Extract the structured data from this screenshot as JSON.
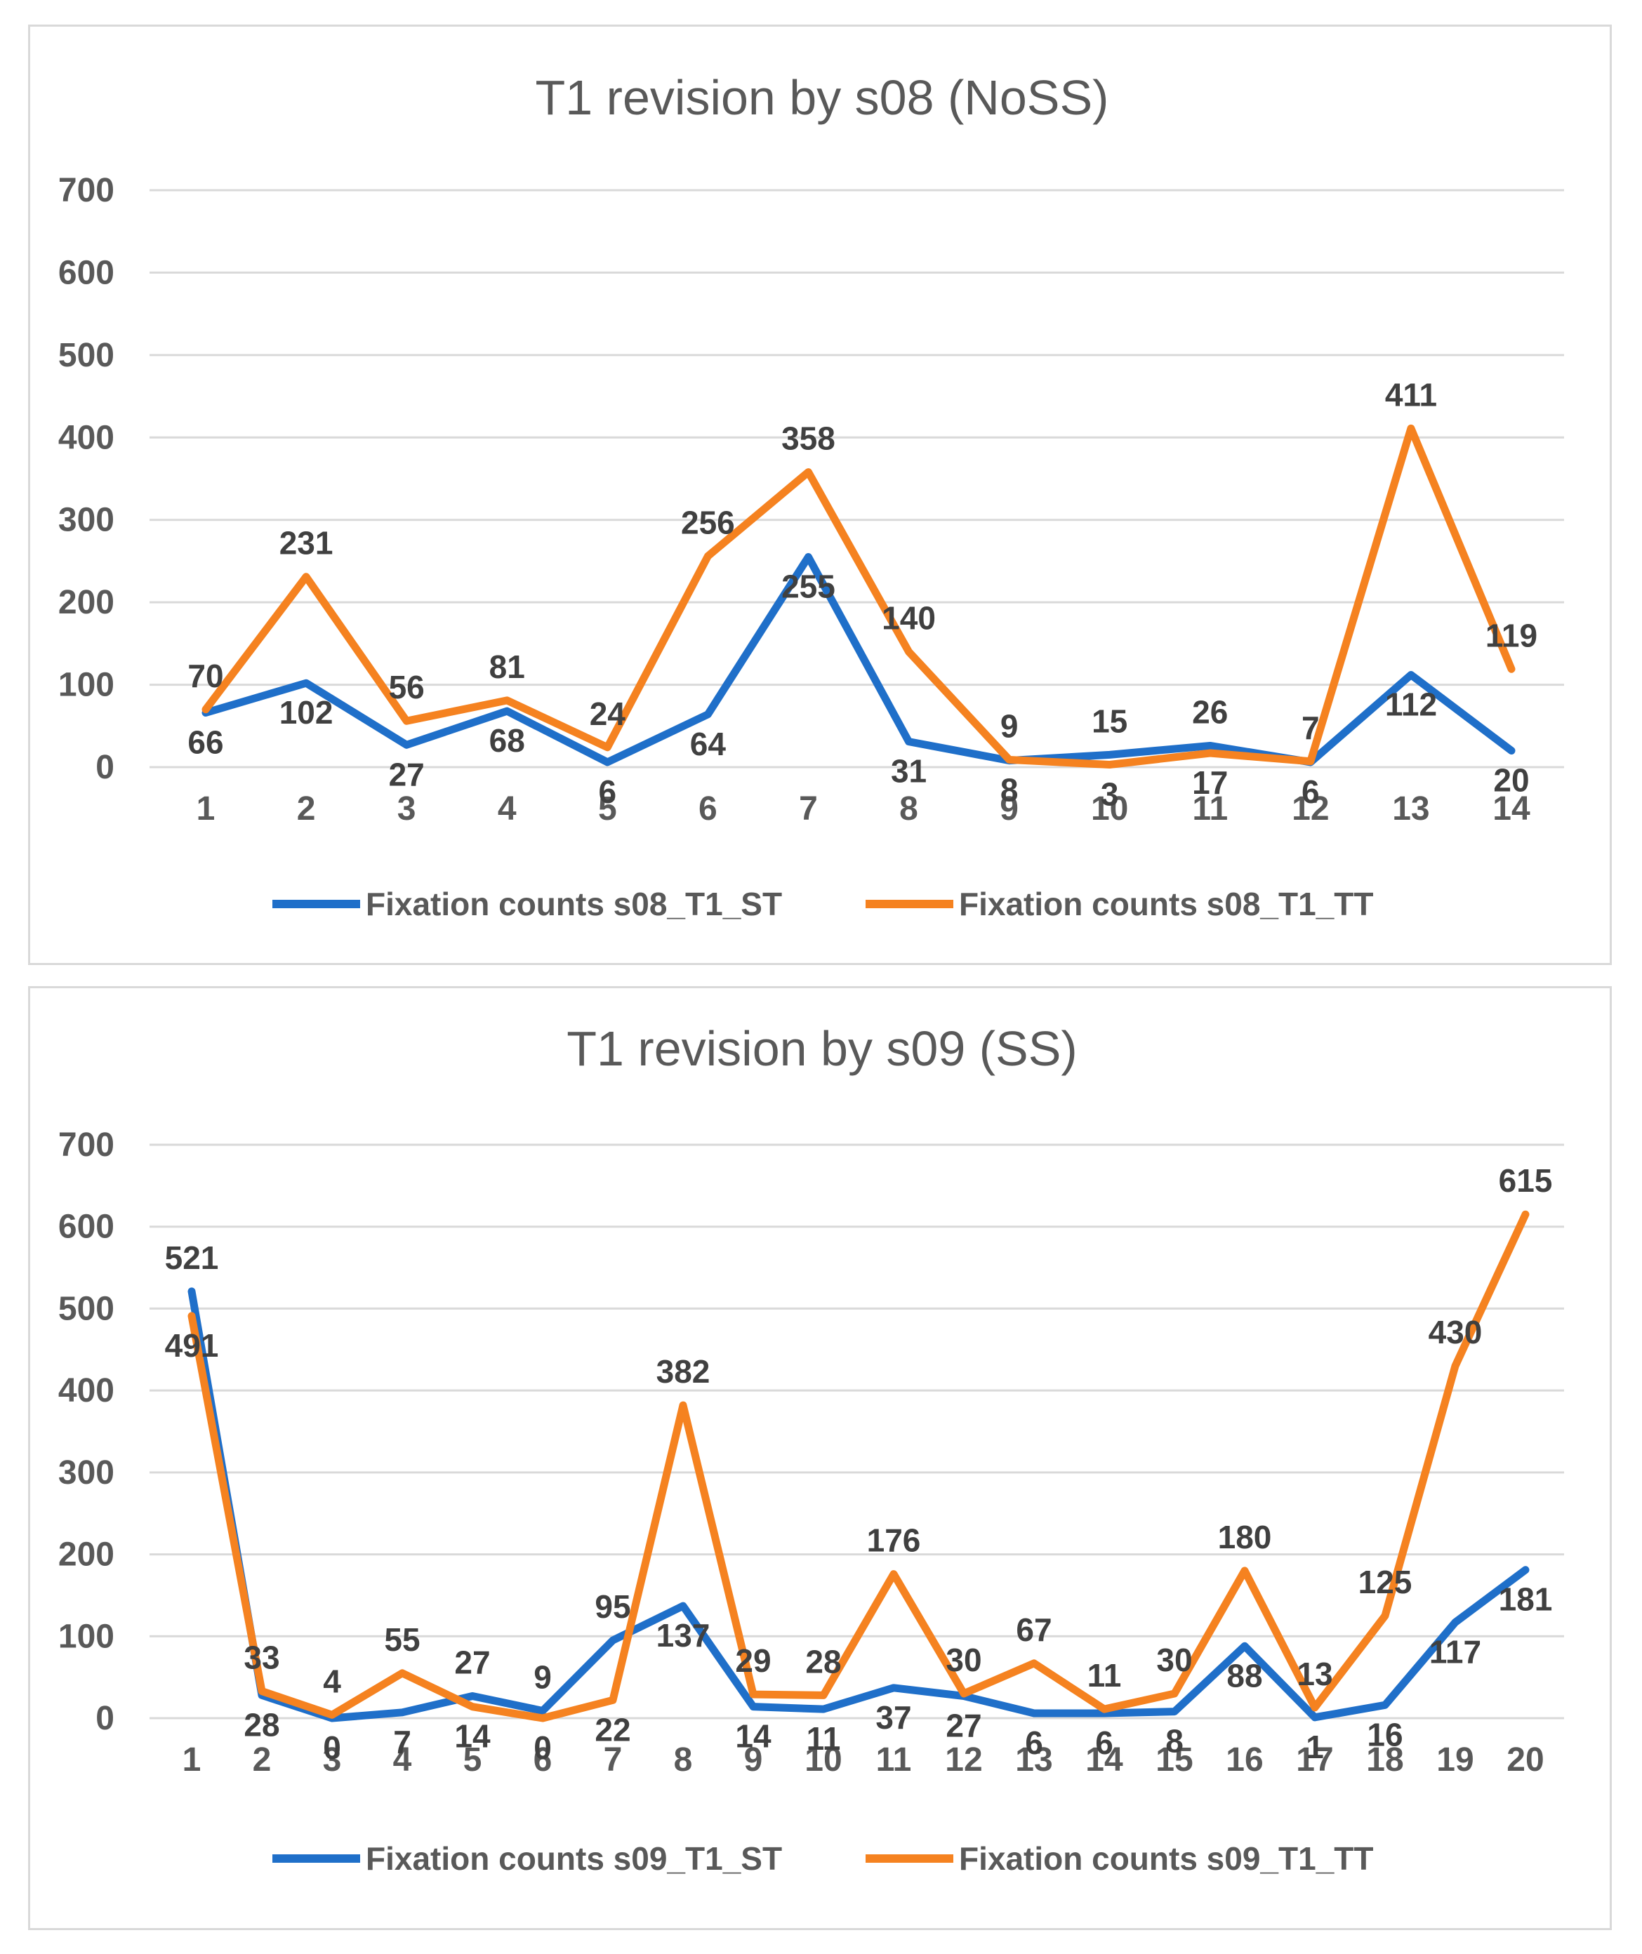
{
  "charts": [
    {
      "type": "line",
      "title": "T1 revision by s08 (NoSS)",
      "categories": [
        "1",
        "2",
        "3",
        "4",
        "5",
        "6",
        "7",
        "8",
        "9",
        "10",
        "11",
        "12",
        "13",
        "14"
      ],
      "y_ticks": [
        "0",
        "100",
        "200",
        "300",
        "400",
        "500",
        "600",
        "700"
      ],
      "ylim": [
        0,
        700
      ],
      "series": [
        {
          "name": "Fixation counts s08_T1_ST",
          "color": "#1f6fc9",
          "values": [
            66,
            102,
            27,
            68,
            6,
            64,
            255,
            31,
            8,
            15,
            26,
            6,
            112,
            20
          ],
          "labels": [
            "66",
            "102",
            "27",
            "68",
            "6",
            "64",
            "255",
            "31",
            "8",
            "15",
            "26",
            "6",
            "112",
            "20"
          ]
        },
        {
          "name": "Fixation counts s08_T1_TT",
          "color": "#f58220",
          "values": [
            70,
            231,
            56,
            81,
            24,
            256,
            358,
            140,
            9,
            3,
            17,
            7,
            411,
            119
          ],
          "labels": [
            "70",
            "231",
            "56",
            "81",
            "24",
            "256",
            "358",
            "140",
            "9",
            "3",
            "17",
            "7",
            "411",
            "119"
          ]
        }
      ]
    },
    {
      "type": "line",
      "title": "T1 revision by s09 (SS)",
      "categories": [
        "1",
        "2",
        "3",
        "4",
        "5",
        "6",
        "7",
        "8",
        "9",
        "10",
        "11",
        "12",
        "13",
        "14",
        "15",
        "16",
        "17",
        "18",
        "19",
        "20"
      ],
      "y_ticks": [
        "0",
        "100",
        "200",
        "300",
        "400",
        "500",
        "600",
        "700"
      ],
      "ylim": [
        0,
        700
      ],
      "series": [
        {
          "name": "Fixation counts s09_T1_ST",
          "color": "#1f6fc9",
          "values": [
            521,
            28,
            0,
            7,
            27,
            9,
            95,
            137,
            14,
            11,
            37,
            27,
            6,
            6,
            8,
            88,
            1,
            16,
            117,
            181
          ],
          "labels": [
            "521",
            "28",
            "0",
            "7",
            "27",
            "9",
            "95",
            "137",
            "14",
            "11",
            "37",
            "27",
            "6",
            "6",
            "8",
            "88",
            "1",
            "16",
            "117",
            "181"
          ]
        },
        {
          "name": "Fixation counts s09_T1_TT",
          "color": "#f58220",
          "values": [
            491,
            33,
            4,
            55,
            14,
            0,
            22,
            382,
            29,
            28,
            176,
            30,
            67,
            11,
            30,
            180,
            13,
            125,
            430,
            615
          ],
          "labels": [
            "491",
            "33",
            "4",
            "55",
            "14",
            "0",
            "22",
            "382",
            "29",
            "28",
            "176",
            "30",
            "67",
            "11",
            "30",
            "180",
            "13",
            "125",
            "430",
            "615"
          ]
        }
      ]
    }
  ],
  "chart_data": [
    {
      "type": "line",
      "title": "T1 revision by s08 (NoSS)",
      "x": [
        1,
        2,
        3,
        4,
        5,
        6,
        7,
        8,
        9,
        10,
        11,
        12,
        13,
        14
      ],
      "ylim": [
        0,
        700
      ],
      "series": [
        {
          "name": "Fixation counts s08_T1_ST",
          "values": [
            66,
            102,
            27,
            68,
            6,
            64,
            255,
            31,
            8,
            15,
            26,
            6,
            112,
            20
          ]
        },
        {
          "name": "Fixation counts s08_T1_TT",
          "values": [
            70,
            231,
            56,
            81,
            24,
            256,
            358,
            140,
            9,
            3,
            17,
            7,
            411,
            119
          ]
        }
      ],
      "legend": "bottom"
    },
    {
      "type": "line",
      "title": "T1 revision by s09 (SS)",
      "x": [
        1,
        2,
        3,
        4,
        5,
        6,
        7,
        8,
        9,
        10,
        11,
        12,
        13,
        14,
        15,
        16,
        17,
        18,
        19,
        20
      ],
      "ylim": [
        0,
        700
      ],
      "series": [
        {
          "name": "Fixation counts s09_T1_ST",
          "values": [
            521,
            28,
            0,
            7,
            27,
            9,
            95,
            137,
            14,
            11,
            37,
            27,
            6,
            6,
            8,
            88,
            1,
            16,
            117,
            181
          ]
        },
        {
          "name": "Fixation counts s09_T1_TT",
          "values": [
            491,
            33,
            4,
            55,
            14,
            0,
            22,
            382,
            29,
            28,
            176,
            30,
            67,
            11,
            30,
            180,
            13,
            125,
            430,
            615
          ]
        }
      ],
      "legend": "bottom"
    }
  ]
}
